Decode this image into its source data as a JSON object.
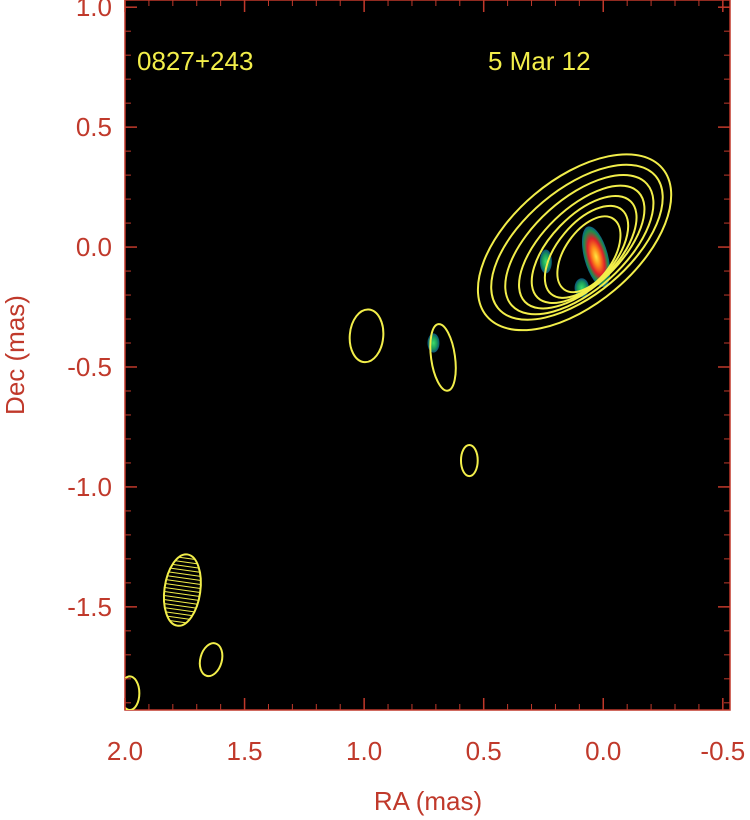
{
  "chart_data": {
    "type": "contour",
    "source_label": "0827+243",
    "epoch_label": "5 Mar 12",
    "xlabel": "RA (mas)",
    "ylabel": "Dec (mas)",
    "xlim": [
      2.0,
      -0.53
    ],
    "ylim": [
      -1.93,
      1.03
    ],
    "x_ticks": [
      2.0,
      1.5,
      1.0,
      0.5,
      0.0,
      -0.5
    ],
    "x_tick_labels": [
      "2.0",
      "1.5",
      "1.0",
      "0.5",
      "0.0",
      "-0.5"
    ],
    "y_ticks": [
      1.0,
      0.5,
      0.0,
      -0.5,
      -1.0,
      -1.5
    ],
    "y_tick_labels": [
      "1.0",
      "0.5",
      "0.0",
      "-0.5",
      "-1.0",
      "-1.5"
    ],
    "colors": {
      "axis": "#c0392b",
      "plot_bg": "#000000",
      "contour": "#f2ee4a",
      "label": "#f2ee4a"
    },
    "core_contours": [
      {
        "cx": 0.12,
        "cy": 0.02,
        "rx": 0.48,
        "ry": 0.26,
        "angle": 40
      },
      {
        "cx": 0.11,
        "cy": 0.02,
        "rx": 0.43,
        "ry": 0.22,
        "angle": 40
      },
      {
        "cx": 0.1,
        "cy": 0.01,
        "rx": 0.38,
        "ry": 0.19,
        "angle": 42
      },
      {
        "cx": 0.09,
        "cy": 0.0,
        "rx": 0.33,
        "ry": 0.16,
        "angle": 44
      },
      {
        "cx": 0.08,
        "cy": -0.01,
        "rx": 0.28,
        "ry": 0.14,
        "angle": 46
      },
      {
        "cx": 0.07,
        "cy": -0.02,
        "rx": 0.23,
        "ry": 0.12,
        "angle": 50
      },
      {
        "cx": 0.06,
        "cy": -0.03,
        "rx": 0.18,
        "ry": 0.1,
        "angle": 55
      }
    ],
    "blob_contours": [
      {
        "cx": 0.99,
        "cy": -0.37,
        "rx": 0.07,
        "ry": 0.11,
        "angle": -5
      },
      {
        "cx": 0.67,
        "cy": -0.46,
        "rx": 0.05,
        "ry": 0.14,
        "angle": 8
      },
      {
        "cx": 0.56,
        "cy": -0.89,
        "rx": 0.035,
        "ry": 0.065,
        "angle": 0
      },
      {
        "cx": 1.64,
        "cy": -1.72,
        "rx": 0.045,
        "ry": 0.07,
        "angle": -15
      },
      {
        "cx": 1.98,
        "cy": -1.86,
        "rx": 0.04,
        "ry": 0.07,
        "angle": 0
      }
    ],
    "beam": {
      "cx": 1.76,
      "cy": -1.43,
      "rx": 0.075,
      "ry": 0.15,
      "angle": -8
    },
    "color_components": [
      {
        "cx": 0.03,
        "cy": -0.04,
        "rx": 0.05,
        "ry": 0.13,
        "angle": 15,
        "intensity": "peak"
      },
      {
        "cx": 0.09,
        "cy": -0.17,
        "rx": 0.03,
        "ry": 0.04,
        "angle": 0,
        "intensity": "low"
      },
      {
        "cx": 0.24,
        "cy": -0.06,
        "rx": 0.025,
        "ry": 0.05,
        "angle": 0,
        "intensity": "low"
      },
      {
        "cx": 0.71,
        "cy": -0.4,
        "rx": 0.025,
        "ry": 0.04,
        "angle": 0,
        "intensity": "low"
      }
    ]
  }
}
